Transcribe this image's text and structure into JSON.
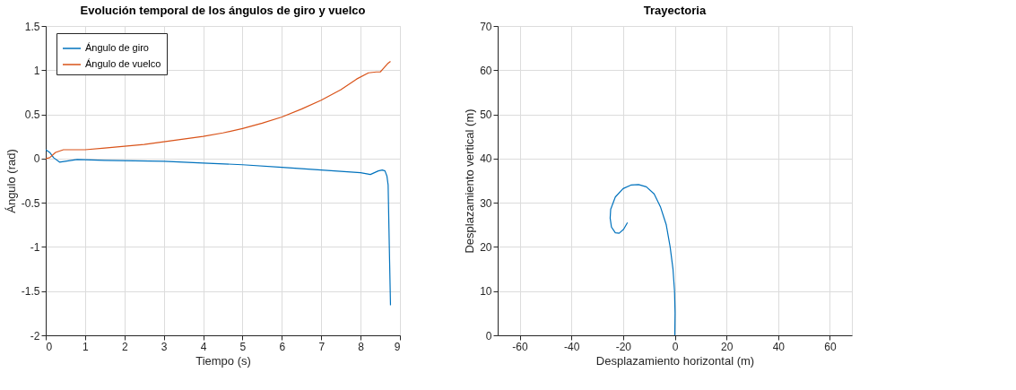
{
  "chart_data": [
    {
      "type": "line",
      "title": "Evolución temporal de los ángulos de giro y vuelco",
      "xlabel": "Tiempo (s)",
      "ylabel": "Ángulo (rad)",
      "xlim": [
        0,
        9
      ],
      "xticks": [
        0,
        1,
        2,
        3,
        4,
        5,
        6,
        7,
        8,
        9
      ],
      "ylim": [
        -2,
        1.5
      ],
      "yticks": [
        -2,
        -1.5,
        -1,
        -0.5,
        0,
        0.5,
        1,
        1.5
      ],
      "grid": true,
      "legend": "top left",
      "series": [
        {
          "name": "Ángulo de giro",
          "color": "#0072bd",
          "x": [
            0,
            0.1,
            0.2,
            0.35,
            0.5,
            0.8,
            1.5,
            3,
            4,
            5,
            6,
            7,
            8,
            8.25,
            8.35,
            8.45,
            8.55,
            8.62,
            8.67,
            8.7,
            8.73,
            8.76
          ],
          "values": [
            0.1,
            0.07,
            0.01,
            -0.04,
            -0.03,
            -0.01,
            -0.02,
            -0.03,
            -0.05,
            -0.07,
            -0.1,
            -0.13,
            -0.16,
            -0.18,
            -0.16,
            -0.14,
            -0.13,
            -0.14,
            -0.2,
            -0.3,
            -1.0,
            -1.66
          ]
        },
        {
          "name": "Ángulo de vuelco",
          "color": "#d95319",
          "x": [
            0,
            0.1,
            0.25,
            0.45,
            0.7,
            1,
            1.5,
            2,
            2.5,
            3,
            3.5,
            4,
            4.5,
            5,
            5.5,
            6,
            6.5,
            7,
            7.5,
            7.9,
            8.2,
            8.4,
            8.5,
            8.6,
            8.7,
            8.76
          ],
          "values": [
            0,
            0.01,
            0.07,
            0.1,
            0.1,
            0.1,
            0.12,
            0.14,
            0.16,
            0.19,
            0.22,
            0.25,
            0.29,
            0.34,
            0.4,
            0.47,
            0.56,
            0.66,
            0.78,
            0.9,
            0.97,
            0.98,
            0.98,
            1.03,
            1.08,
            1.1
          ]
        }
      ]
    },
    {
      "type": "line",
      "title": "Trayectoria",
      "xlabel": "Desplazamiento horizontal (m)",
      "ylabel": "Desplazamiento vertical (m)",
      "xlim": [
        -68.5,
        68.5
      ],
      "xticks": [
        -60,
        -40,
        -20,
        0,
        20,
        40,
        60
      ],
      "ylim": [
        0,
        70
      ],
      "yticks": [
        0,
        10,
        20,
        30,
        40,
        50,
        60,
        70
      ],
      "grid": true,
      "series": [
        {
          "color": "#0072bd",
          "x": [
            0,
            0.1,
            -0.1,
            -0.7,
            -1.8,
            -3.3,
            -5.5,
            -8,
            -11,
            -14,
            -17,
            -20,
            -23,
            -24.8,
            -25,
            -24.5,
            -23,
            -21.5,
            -19.8,
            -18.3
          ],
          "values": [
            0,
            5,
            10,
            15,
            20,
            25,
            29,
            32,
            33.6,
            34.1,
            34,
            33.2,
            31.3,
            28.5,
            26.5,
            24.5,
            23.2,
            23.1,
            24,
            25.5
          ]
        }
      ]
    }
  ]
}
